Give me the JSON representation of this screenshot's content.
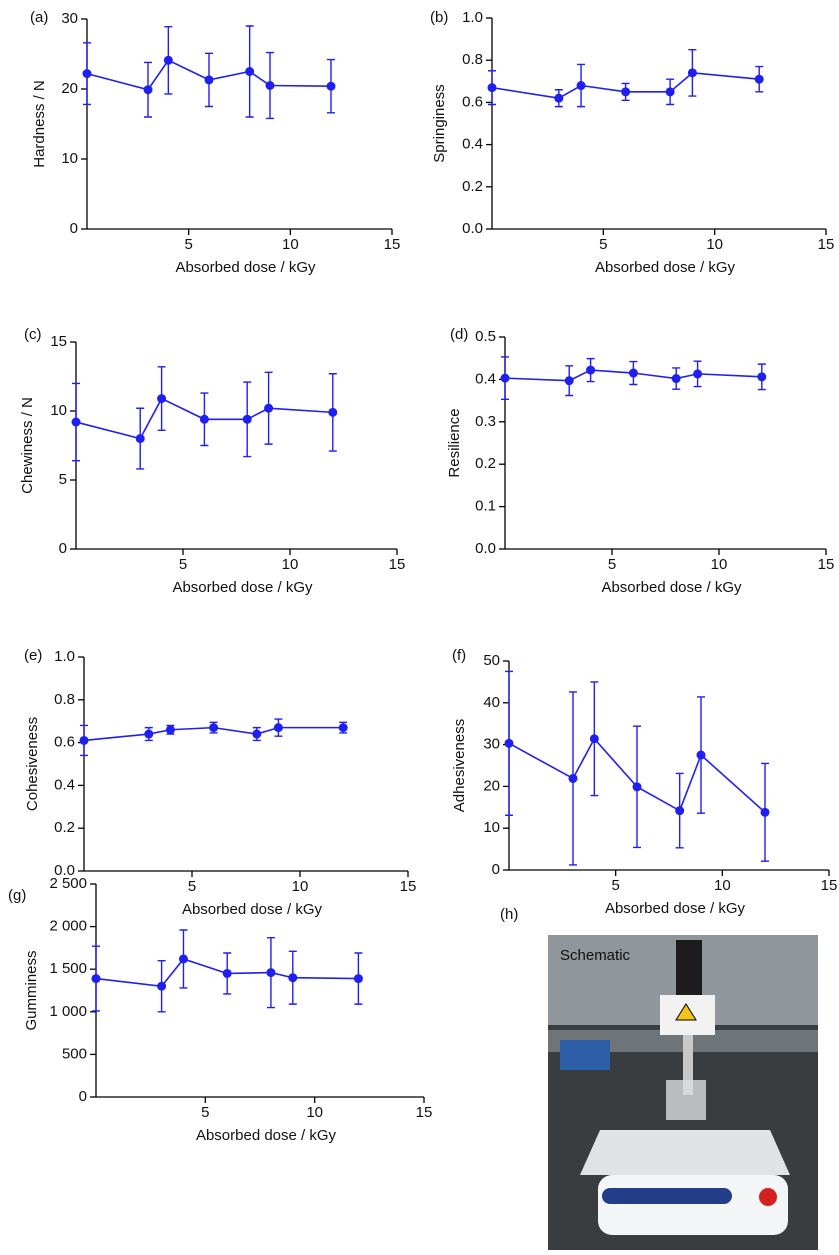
{
  "chart_data": [
    {
      "type": "line",
      "panel": "(a)",
      "ylabel": "Hardness / N",
      "xlabel": "Absorbed dose / kGy",
      "color": "#1f1fef",
      "x": [
        0,
        3,
        4,
        6,
        8,
        9,
        12
      ],
      "values": [
        22.2,
        19.9,
        24.1,
        21.3,
        22.5,
        20.5,
        20.4
      ],
      "errors": [
        4.4,
        3.9,
        4.8,
        3.8,
        6.5,
        4.7,
        3.8
      ],
      "xlim": [
        0,
        15
      ],
      "xticks": [
        5,
        10,
        15
      ],
      "ylim": [
        0,
        30
      ],
      "yticks": [
        0,
        10,
        20,
        30
      ]
    },
    {
      "type": "line",
      "panel": "(b)",
      "ylabel": "Springiness",
      "xlabel": "Absorbed dose / kGy",
      "color": "#1f1fef",
      "x": [
        0,
        3,
        4,
        6,
        8,
        9,
        12
      ],
      "values": [
        0.67,
        0.62,
        0.68,
        0.65,
        0.65,
        0.74,
        0.71
      ],
      "errors": [
        0.08,
        0.04,
        0.1,
        0.04,
        0.06,
        0.11,
        0.06
      ],
      "xlim": [
        0,
        15
      ],
      "xticks": [
        5,
        10,
        15
      ],
      "ylim": [
        0,
        1
      ],
      "yticks": [
        {
          "value": 0,
          "label": "0.0"
        },
        0.2,
        0.4,
        0.6,
        0.8,
        {
          "value": 1,
          "label": "1.0"
        }
      ]
    },
    {
      "type": "line",
      "panel": "(c)",
      "ylabel": "Chewiness / N",
      "xlabel": "Absorbed dose / kGy",
      "color": "#1f1fef",
      "x": [
        0,
        3,
        4,
        6,
        8,
        9,
        12
      ],
      "values": [
        9.2,
        8.0,
        10.9,
        9.4,
        9.4,
        10.2,
        9.9
      ],
      "errors": [
        2.8,
        2.2,
        2.3,
        1.9,
        2.7,
        2.6,
        2.8
      ],
      "xlim": [
        0,
        15
      ],
      "xticks": [
        5,
        10,
        15
      ],
      "ylim": [
        0,
        15
      ],
      "yticks": [
        0,
        5,
        10,
        15
      ]
    },
    {
      "type": "line",
      "panel": "(d)",
      "ylabel": "Resilience",
      "xlabel": "Absorbed dose / kGy",
      "color": "#1f1fef",
      "x": [
        0,
        3,
        4,
        6,
        8,
        9,
        12
      ],
      "values": [
        0.403,
        0.397,
        0.422,
        0.415,
        0.402,
        0.413,
        0.406
      ],
      "errors": [
        0.05,
        0.035,
        0.027,
        0.027,
        0.025,
        0.03,
        0.03
      ],
      "xlim": [
        0,
        15
      ],
      "xticks": [
        5,
        10,
        15
      ],
      "ylim": [
        0,
        0.5
      ],
      "yticks": [
        {
          "value": 0,
          "label": "0.0"
        },
        0.1,
        0.2,
        0.3,
        0.4,
        0.5
      ]
    },
    {
      "type": "line",
      "panel": "(e)",
      "ylabel": "Cohesiveness",
      "xlabel": "Absorbed dose / kGy",
      "color": "#1f1fef",
      "x": [
        0,
        3,
        4,
        6,
        8,
        9,
        12
      ],
      "values": [
        0.61,
        0.64,
        0.66,
        0.67,
        0.64,
        0.67,
        0.67
      ],
      "errors": [
        0.07,
        0.03,
        0.02,
        0.025,
        0.03,
        0.04,
        0.025
      ],
      "xlim": [
        0,
        15
      ],
      "xticks": [
        5,
        10,
        15
      ],
      "ylim": [
        0,
        1
      ],
      "yticks": [
        {
          "value": 0,
          "label": "0.0"
        },
        0.2,
        0.4,
        0.6,
        0.8,
        {
          "value": 1,
          "label": "1.0"
        }
      ]
    },
    {
      "type": "line",
      "panel": "(f)",
      "ylabel": "Adhesiveness",
      "xlabel": "Absorbed dose / kGy",
      "color": "#1f1fef",
      "x": [
        0,
        3,
        4,
        6,
        8,
        9,
        12
      ],
      "values": [
        30.3,
        21.9,
        31.4,
        19.9,
        14.2,
        27.5,
        13.8
      ],
      "errors": [
        17.2,
        20.7,
        13.6,
        14.5,
        8.9,
        13.9,
        11.7
      ],
      "xlim": [
        0,
        15
      ],
      "xticks": [
        5,
        10,
        15
      ],
      "ylim": [
        0,
        50
      ],
      "yticks": [
        0,
        10,
        20,
        30,
        40,
        50
      ]
    },
    {
      "type": "line",
      "panel": "(g)",
      "ylabel": "Gumminess",
      "xlabel": "Absorbed dose / kGy",
      "color": "#1f1fef",
      "x": [
        0,
        3,
        4,
        6,
        8,
        9,
        12
      ],
      "values": [
        1390,
        1300,
        1620,
        1450,
        1460,
        1400,
        1390
      ],
      "errors": [
        380,
        300,
        340,
        240,
        410,
        310,
        300
      ],
      "xlim": [
        0,
        15
      ],
      "xticks": [
        5,
        10,
        15
      ],
      "ylim": [
        0,
        2500
      ],
      "yticks": [
        0,
        500,
        {
          "value": 1000,
          "label": "1 000"
        },
        {
          "value": 1500,
          "label": "1 500"
        },
        {
          "value": 2000,
          "label": "2 000"
        },
        {
          "value": 2500,
          "label": "2 500"
        }
      ]
    }
  ],
  "photo": {
    "panel": "(h)",
    "caption": "Schematic"
  }
}
